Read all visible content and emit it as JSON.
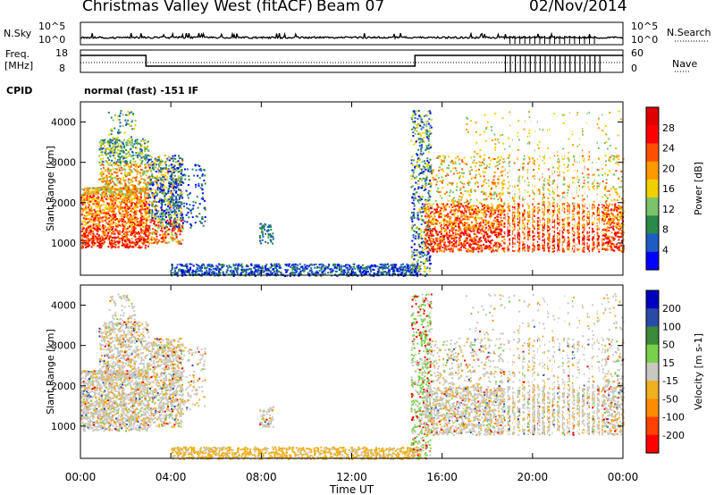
{
  "header": {
    "station": "Christmas Valley West (fitACF)",
    "beam": "Beam 07",
    "date": "02/Nov/2014",
    "cpid_label": "CPID",
    "cpid_value": "normal (fast) -151 IF"
  },
  "top_panel_1": {
    "left_label": "N.Sky",
    "left_ticks": [
      "10^5",
      "10^0"
    ],
    "right_ticks": [
      "10^5",
      "10^0"
    ],
    "right_label": "N.Search"
  },
  "top_panel_2": {
    "left_label_1": "Freq.",
    "left_label_2": "[MHz]",
    "left_ticks": [
      "18",
      "8"
    ],
    "right_ticks": [
      "60",
      "0"
    ],
    "right_label": "Nave"
  },
  "colors": {
    "power": [
      "#0000ff",
      "#1d5cc4",
      "#2a8a4a",
      "#7cc46a",
      "#f0d000",
      "#ff9900",
      "#ff5000",
      "#ff0000",
      "#e00000"
    ],
    "velocity": [
      "#0000c0",
      "#2a4aa8",
      "#3a8a3a",
      "#7ad04a",
      "#c8c8c0",
      "#f0b020",
      "#ff8c00",
      "#ff4000",
      "#ff0000"
    ]
  },
  "chart_data": [
    {
      "type": "heatmap",
      "name": "Power",
      "xlabel": "",
      "ylabel": "Slant Range [km]",
      "x_ticks": [
        "00:00",
        "04:00",
        "08:00",
        "12:00",
        "16:00",
        "20:00",
        "00:00"
      ],
      "y_ticks": [
        1000,
        2000,
        3000,
        4000
      ],
      "ylim": [
        200,
        4500
      ],
      "colorbar_label": "Power [dB]",
      "colorbar_ticks": [
        4,
        8,
        12,
        16,
        20,
        24,
        28
      ]
    },
    {
      "type": "heatmap",
      "name": "Velocity",
      "xlabel": "Time UT",
      "ylabel": "Slant Range [km]",
      "x_ticks": [
        "00:00",
        "04:00",
        "08:00",
        "12:00",
        "16:00",
        "20:00",
        "00:00"
      ],
      "y_ticks": [
        1000,
        2000,
        3000,
        4000
      ],
      "ylim": [
        200,
        4500
      ],
      "colorbar_label": "Velocity [m s-1]",
      "colorbar_ticks": [
        "200",
        "100",
        "50",
        "15",
        "-15",
        "-50",
        "-100",
        "-200"
      ]
    }
  ]
}
